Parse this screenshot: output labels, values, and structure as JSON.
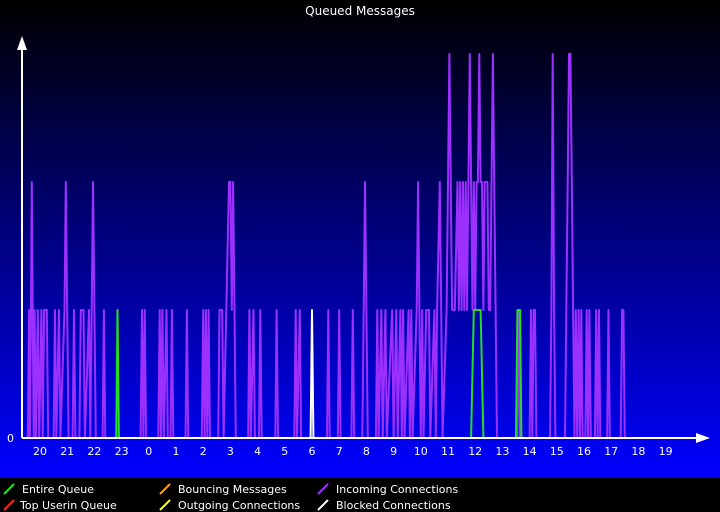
{
  "chart_data": {
    "type": "line",
    "title": "Queued Messages",
    "y_tick_labels": [
      "0"
    ],
    "x_tick_labels": [
      "20",
      "21",
      "22",
      "23",
      "0",
      "1",
      "2",
      "3",
      "4",
      "5",
      "6",
      "7",
      "8",
      "9",
      "10",
      "11",
      "12",
      "13",
      "14",
      "15",
      "16",
      "17",
      "18",
      "19"
    ],
    "ylim": [
      0,
      3
    ],
    "series": [
      {
        "name": "Incoming Connections",
        "color": "#9b30ff",
        "points": [
          [
            19.55,
            0
          ],
          [
            19.6,
            1
          ],
          [
            19.63,
            0
          ],
          [
            19.67,
            1
          ],
          [
            19.7,
            2
          ],
          [
            19.73,
            1
          ],
          [
            19.77,
            0
          ],
          [
            19.8,
            1
          ],
          [
            19.85,
            0
          ],
          [
            19.92,
            1
          ],
          [
            19.97,
            0
          ],
          [
            20.05,
            1
          ],
          [
            20.1,
            0
          ],
          [
            20.15,
            1
          ],
          [
            20.25,
            1
          ],
          [
            20.3,
            0
          ],
          [
            20.5,
            0
          ],
          [
            20.55,
            1
          ],
          [
            20.6,
            0
          ],
          [
            20.7,
            1
          ],
          [
            20.75,
            0
          ],
          [
            20.9,
            1
          ],
          [
            20.95,
            2
          ],
          [
            21.0,
            1
          ],
          [
            21.05,
            0
          ],
          [
            21.2,
            0
          ],
          [
            21.25,
            1
          ],
          [
            21.3,
            0
          ],
          [
            21.45,
            0
          ],
          [
            21.5,
            1
          ],
          [
            21.6,
            1
          ],
          [
            21.65,
            0
          ],
          [
            21.8,
            1
          ],
          [
            21.85,
            0
          ],
          [
            21.9,
            1
          ],
          [
            21.95,
            2
          ],
          [
            22.0,
            1
          ],
          [
            22.05,
            0
          ],
          [
            22.3,
            0
          ],
          [
            22.35,
            1
          ],
          [
            22.4,
            0
          ],
          [
            23.7,
            0
          ],
          [
            23.75,
            1
          ],
          [
            23.8,
            0
          ],
          [
            23.85,
            1
          ],
          [
            23.9,
            0
          ],
          [
            24.35,
            0
          ],
          [
            24.4,
            1
          ],
          [
            24.45,
            0
          ],
          [
            24.5,
            1
          ],
          [
            24.55,
            0
          ],
          [
            24.65,
            1
          ],
          [
            24.7,
            0
          ],
          [
            24.8,
            0
          ],
          [
            24.85,
            1
          ],
          [
            24.9,
            0
          ],
          [
            25.35,
            0
          ],
          [
            25.4,
            1
          ],
          [
            25.45,
            0
          ],
          [
            25.95,
            0
          ],
          [
            26.0,
            1
          ],
          [
            26.05,
            0
          ],
          [
            26.1,
            1
          ],
          [
            26.15,
            0
          ],
          [
            26.2,
            1
          ],
          [
            26.25,
            0
          ],
          [
            26.55,
            0
          ],
          [
            26.6,
            1
          ],
          [
            26.7,
            1
          ],
          [
            26.75,
            0
          ],
          [
            26.85,
            1
          ],
          [
            26.95,
            2
          ],
          [
            27.0,
            2
          ],
          [
            27.05,
            1
          ],
          [
            27.1,
            2
          ],
          [
            27.15,
            1
          ],
          [
            27.2,
            0
          ],
          [
            27.65,
            0
          ],
          [
            27.7,
            1
          ],
          [
            27.75,
            0
          ],
          [
            27.85,
            1
          ],
          [
            27.9,
            0
          ],
          [
            28.05,
            0
          ],
          [
            28.1,
            1
          ],
          [
            28.15,
            0
          ],
          [
            28.65,
            0
          ],
          [
            28.7,
            1
          ],
          [
            28.75,
            0
          ],
          [
            29.35,
            0
          ],
          [
            29.4,
            1
          ],
          [
            29.45,
            0
          ],
          [
            29.55,
            1
          ],
          [
            29.6,
            0
          ],
          [
            30.55,
            0
          ],
          [
            30.6,
            1
          ],
          [
            30.65,
            0
          ],
          [
            30.95,
            0
          ],
          [
            31.0,
            1
          ],
          [
            31.05,
            0
          ],
          [
            31.45,
            0
          ],
          [
            31.5,
            1
          ],
          [
            31.55,
            0
          ],
          [
            31.85,
            0
          ],
          [
            31.9,
            1
          ],
          [
            31.95,
            2
          ],
          [
            32.0,
            1
          ],
          [
            32.05,
            0
          ],
          [
            32.35,
            0
          ],
          [
            32.4,
            1
          ],
          [
            32.45,
            0
          ],
          [
            32.55,
            1
          ],
          [
            32.6,
            0
          ],
          [
            32.7,
            1
          ],
          [
            32.75,
            0
          ],
          [
            32.95,
            1
          ],
          [
            33.0,
            0
          ],
          [
            33.1,
            1
          ],
          [
            33.15,
            0
          ],
          [
            33.25,
            1
          ],
          [
            33.3,
            0
          ],
          [
            33.35,
            1
          ],
          [
            33.4,
            0
          ],
          [
            33.55,
            1
          ],
          [
            33.6,
            0
          ],
          [
            33.65,
            1
          ],
          [
            33.7,
            0
          ],
          [
            33.85,
            1
          ],
          [
            33.9,
            2
          ],
          [
            33.95,
            1
          ],
          [
            34.0,
            0
          ],
          [
            34.05,
            1
          ],
          [
            34.1,
            0
          ],
          [
            34.2,
            1
          ],
          [
            34.3,
            1
          ],
          [
            34.35,
            0
          ],
          [
            34.5,
            1
          ],
          [
            34.55,
            0
          ],
          [
            34.6,
            1
          ],
          [
            34.7,
            2
          ],
          [
            34.75,
            1
          ],
          [
            34.8,
            0
          ],
          [
            34.95,
            1
          ],
          [
            35.0,
            2
          ],
          [
            35.05,
            3
          ],
          [
            35.1,
            2
          ],
          [
            35.15,
            1
          ],
          [
            35.25,
            1
          ],
          [
            35.35,
            2
          ],
          [
            35.4,
            1
          ],
          [
            35.45,
            2
          ],
          [
            35.5,
            1
          ],
          [
            35.55,
            2
          ],
          [
            35.6,
            1
          ],
          [
            35.65,
            2
          ],
          [
            35.7,
            1
          ],
          [
            35.75,
            2
          ],
          [
            35.8,
            3
          ],
          [
            35.85,
            2
          ],
          [
            35.9,
            1
          ],
          [
            35.95,
            2
          ],
          [
            36.0,
            1
          ],
          [
            36.05,
            2
          ],
          [
            36.1,
            2
          ],
          [
            36.15,
            3
          ],
          [
            36.2,
            2
          ],
          [
            36.25,
            2
          ],
          [
            36.3,
            1
          ],
          [
            36.35,
            2
          ],
          [
            36.45,
            2
          ],
          [
            36.5,
            1
          ],
          [
            36.55,
            1
          ],
          [
            36.6,
            2
          ],
          [
            36.65,
            3
          ],
          [
            36.7,
            2
          ],
          [
            36.75,
            1
          ],
          [
            36.8,
            0
          ],
          [
            37.55,
            0
          ],
          [
            37.6,
            1
          ],
          [
            37.65,
            0
          ],
          [
            38.0,
            0
          ],
          [
            38.05,
            1
          ],
          [
            38.1,
            0
          ],
          [
            38.15,
            1
          ],
          [
            38.2,
            1
          ],
          [
            38.25,
            0
          ],
          [
            38.75,
            0
          ],
          [
            38.8,
            1
          ],
          [
            38.85,
            3
          ],
          [
            38.9,
            1
          ],
          [
            38.95,
            0
          ],
          [
            39.3,
            0
          ],
          [
            39.35,
            1
          ],
          [
            39.4,
            2
          ],
          [
            39.45,
            3
          ],
          [
            39.5,
            3
          ],
          [
            39.55,
            2
          ],
          [
            39.6,
            1
          ],
          [
            39.65,
            0
          ],
          [
            39.7,
            1
          ],
          [
            39.75,
            0
          ],
          [
            39.8,
            1
          ],
          [
            39.85,
            0
          ],
          [
            39.9,
            1
          ],
          [
            39.95,
            0
          ],
          [
            40.05,
            0
          ],
          [
            40.1,
            1
          ],
          [
            40.15,
            0
          ],
          [
            40.2,
            1
          ],
          [
            40.25,
            0
          ],
          [
            40.4,
            0
          ],
          [
            40.45,
            1
          ],
          [
            40.5,
            0
          ],
          [
            40.55,
            1
          ],
          [
            40.6,
            0
          ],
          [
            40.85,
            0
          ],
          [
            40.9,
            1
          ],
          [
            40.95,
            0
          ],
          [
            41.35,
            0
          ],
          [
            41.4,
            1
          ],
          [
            41.45,
            1
          ],
          [
            41.5,
            0
          ]
        ]
      },
      {
        "name": "Entire Queue",
        "color": "#22dd22",
        "points": [
          [
            22.8,
            0
          ],
          [
            22.85,
            1
          ],
          [
            22.9,
            0
          ],
          [
            35.85,
            0
          ],
          [
            35.95,
            1
          ],
          [
            36.2,
            1
          ],
          [
            36.3,
            0
          ],
          [
            37.5,
            0
          ],
          [
            37.55,
            1
          ],
          [
            37.65,
            1
          ],
          [
            37.7,
            0
          ]
        ]
      },
      {
        "name": "Blocked Connections",
        "color": "#ffffff",
        "points": [
          [
            29.95,
            0
          ],
          [
            30.0,
            1
          ],
          [
            30.05,
            0
          ]
        ]
      },
      {
        "name": "Top Userin Queue",
        "color": "#ff2222",
        "points": []
      },
      {
        "name": "Bouncing Messages",
        "color": "#ff9a1a",
        "points": []
      },
      {
        "name": "Outgoing Connections",
        "color": "#ffff33",
        "points": []
      }
    ],
    "legend": {
      "placement": "bottom",
      "columns": [
        [
          "Entire Queue",
          "Top Userin Queue"
        ],
        [
          "Bouncing Messages",
          "Outgoing Connections"
        ],
        [
          "Incoming Connections",
          "Blocked Connections"
        ]
      ]
    },
    "colors": {
      "background_top": "#000000",
      "background_bottom": "#0000ff",
      "axis": "#ffffff",
      "text": "#ffffff"
    }
  }
}
